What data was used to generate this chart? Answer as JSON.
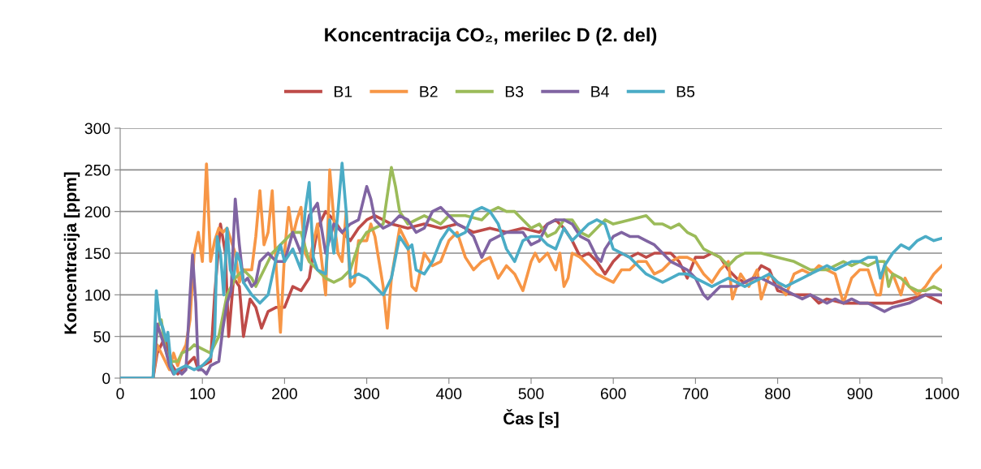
{
  "chart_data": {
    "type": "line",
    "title": "Koncentracija CO₂, merilec D (2. del)",
    "xlabel": "Čas [s]",
    "ylabel": "Koncentracija [ppm]",
    "xlim": [
      0,
      1000
    ],
    "ylim": [
      0,
      300
    ],
    "xticks": [
      0,
      100,
      200,
      300,
      400,
      500,
      600,
      700,
      800,
      900,
      1000
    ],
    "yticks": [
      0,
      50,
      100,
      150,
      200,
      250,
      300
    ],
    "grid": "y",
    "legend": "top",
    "marker": "none",
    "line_style": "solid",
    "series": [
      {
        "name": "B1",
        "color": "#be4b48",
        "x": [
          0,
          40,
          45,
          55,
          60,
          70,
          80,
          90,
          95,
          100,
          110,
          115,
          122,
          128,
          132,
          138,
          145,
          150,
          158,
          165,
          172,
          180,
          190,
          200,
          210,
          220,
          230,
          240,
          250,
          260,
          270,
          280,
          290,
          300,
          310,
          320,
          330,
          350,
          370,
          390,
          410,
          430,
          450,
          470,
          490,
          510,
          520,
          530,
          540,
          550,
          560,
          570,
          580,
          590,
          600,
          610,
          620,
          630,
          640,
          650,
          660,
          670,
          680,
          690,
          700,
          710,
          720,
          730,
          740,
          750,
          760,
          770,
          780,
          790,
          800,
          820,
          840,
          850,
          860,
          880,
          900,
          920,
          940,
          960,
          980,
          1000
        ],
        "values": [
          0,
          0,
          30,
          50,
          20,
          5,
          15,
          25,
          10,
          15,
          20,
          100,
          185,
          150,
          50,
          120,
          110,
          50,
          95,
          85,
          60,
          80,
          85,
          85,
          110,
          105,
          120,
          180,
          200,
          190,
          175,
          165,
          180,
          190,
          195,
          190,
          185,
          180,
          185,
          180,
          185,
          175,
          180,
          175,
          180,
          175,
          185,
          190,
          180,
          165,
          145,
          150,
          140,
          125,
          140,
          150,
          145,
          150,
          145,
          150,
          150,
          150,
          140,
          120,
          145,
          145,
          150,
          145,
          130,
          120,
          115,
          120,
          135,
          130,
          105,
          100,
          100,
          90,
          95,
          90,
          90,
          90,
          90,
          95,
          100,
          90
        ]
      },
      {
        "name": "B2",
        "color": "#f79646",
        "x": [
          0,
          40,
          45,
          55,
          60,
          65,
          70,
          75,
          80,
          85,
          90,
          95,
          100,
          105,
          110,
          115,
          120,
          125,
          130,
          140,
          145,
          150,
          160,
          165,
          170,
          175,
          180,
          185,
          190,
          195,
          200,
          205,
          210,
          215,
          220,
          225,
          230,
          240,
          250,
          255,
          260,
          265,
          270,
          275,
          280,
          285,
          290,
          300,
          305,
          310,
          320,
          325,
          330,
          335,
          340,
          350,
          355,
          360,
          370,
          380,
          390,
          400,
          410,
          420,
          430,
          440,
          450,
          460,
          470,
          480,
          490,
          500,
          505,
          510,
          520,
          530,
          535,
          540,
          545,
          550,
          560,
          570,
          580,
          590,
          600,
          610,
          620,
          630,
          640,
          650,
          660,
          670,
          680,
          690,
          700,
          710,
          720,
          730,
          740,
          745,
          755,
          765,
          775,
          780,
          790,
          800,
          810,
          820,
          830,
          840,
          850,
          860,
          870,
          880,
          890,
          900,
          910,
          920,
          925,
          930,
          940,
          950,
          955,
          960,
          970,
          980,
          990,
          1000
        ],
        "values": [
          0,
          0,
          40,
          20,
          10,
          30,
          15,
          30,
          40,
          70,
          150,
          175,
          140,
          257,
          140,
          165,
          180,
          175,
          180,
          150,
          115,
          130,
          130,
          170,
          225,
          160,
          175,
          225,
          130,
          55,
          150,
          205,
          170,
          190,
          205,
          150,
          140,
          185,
          100,
          250,
          190,
          150,
          140,
          200,
          110,
          115,
          165,
          165,
          185,
          170,
          110,
          60,
          120,
          150,
          180,
          160,
          110,
          105,
          150,
          135,
          140,
          165,
          175,
          145,
          130,
          140,
          145,
          120,
          135,
          125,
          105,
          140,
          150,
          140,
          150,
          130,
          150,
          110,
          120,
          150,
          145,
          135,
          125,
          120,
          115,
          130,
          130,
          140,
          140,
          125,
          130,
          140,
          145,
          145,
          140,
          125,
          115,
          130,
          140,
          95,
          125,
          110,
          130,
          95,
          125,
          115,
          100,
          125,
          130,
          125,
          135,
          130,
          125,
          90,
          120,
          130,
          130,
          100,
          100,
          135,
          125,
          100,
          120,
          110,
          100,
          110,
          125,
          135
        ]
      },
      {
        "name": "B3",
        "color": "#9bbb59",
        "x": [
          0,
          40,
          45,
          50,
          55,
          60,
          70,
          75,
          85,
          90,
          100,
          110,
          120,
          130,
          140,
          150,
          160,
          165,
          175,
          185,
          190,
          200,
          210,
          220,
          230,
          240,
          250,
          260,
          270,
          280,
          290,
          300,
          310,
          320,
          330,
          335,
          340,
          350,
          360,
          370,
          380,
          390,
          400,
          420,
          440,
          450,
          460,
          470,
          480,
          490,
          500,
          510,
          520,
          530,
          540,
          550,
          560,
          570,
          580,
          590,
          600,
          620,
          640,
          650,
          660,
          670,
          680,
          690,
          700,
          710,
          720,
          730,
          740,
          750,
          760,
          780,
          800,
          820,
          840,
          850,
          860,
          870,
          880,
          890,
          900,
          910,
          920,
          930,
          935,
          940,
          950,
          960,
          970,
          980,
          990,
          1000
        ],
        "values": [
          0,
          0,
          60,
          70,
          35,
          20,
          20,
          30,
          35,
          40,
          35,
          30,
          50,
          100,
          120,
          130,
          120,
          110,
          130,
          150,
          155,
          165,
          175,
          175,
          140,
          130,
          120,
          115,
          120,
          130,
          160,
          175,
          180,
          185,
          253,
          230,
          200,
          185,
          190,
          195,
          190,
          185,
          195,
          195,
          190,
          200,
          205,
          200,
          200,
          190,
          180,
          185,
          170,
          175,
          190,
          190,
          175,
          170,
          180,
          190,
          185,
          190,
          195,
          185,
          185,
          180,
          185,
          175,
          170,
          155,
          150,
          145,
          135,
          145,
          150,
          150,
          145,
          140,
          130,
          130,
          130,
          135,
          140,
          135,
          140,
          135,
          140,
          140,
          110,
          125,
          120,
          110,
          105,
          105,
          110,
          105
        ]
      },
      {
        "name": "B4",
        "color": "#8064a2",
        "x": [
          0,
          40,
          45,
          50,
          55,
          60,
          65,
          70,
          75,
          80,
          85,
          88,
          92,
          95,
          100,
          105,
          110,
          120,
          125,
          130,
          135,
          140,
          145,
          150,
          155,
          160,
          165,
          170,
          180,
          190,
          200,
          210,
          220,
          230,
          240,
          250,
          260,
          270,
          280,
          290,
          300,
          305,
          310,
          320,
          330,
          340,
          350,
          360,
          370,
          380,
          390,
          400,
          410,
          420,
          430,
          440,
          450,
          460,
          470,
          480,
          490,
          500,
          510,
          520,
          530,
          540,
          550,
          560,
          570,
          580,
          585,
          590,
          600,
          610,
          620,
          630,
          640,
          650,
          660,
          670,
          680,
          690,
          700,
          710,
          715,
          720,
          730,
          740,
          750,
          760,
          770,
          780,
          790,
          800,
          810,
          820,
          830,
          840,
          850,
          860,
          870,
          880,
          890,
          900,
          910,
          920,
          930,
          940,
          960,
          980,
          1000
        ],
        "values": [
          0,
          0,
          65,
          50,
          35,
          15,
          5,
          10,
          5,
          10,
          100,
          148,
          90,
          10,
          10,
          5,
          15,
          20,
          60,
          90,
          105,
          215,
          160,
          115,
          120,
          110,
          115,
          140,
          150,
          140,
          140,
          175,
          150,
          195,
          210,
          150,
          185,
          175,
          185,
          190,
          230,
          215,
          190,
          180,
          185,
          195,
          190,
          175,
          180,
          200,
          205,
          195,
          185,
          180,
          170,
          145,
          165,
          170,
          175,
          175,
          175,
          160,
          165,
          185,
          190,
          190,
          185,
          170,
          165,
          145,
          140,
          155,
          170,
          175,
          170,
          170,
          165,
          160,
          150,
          140,
          135,
          130,
          120,
          100,
          95,
          100,
          110,
          110,
          110,
          115,
          120,
          120,
          115,
          110,
          105,
          100,
          95,
          100,
          95,
          90,
          95,
          90,
          95,
          90,
          90,
          85,
          80,
          85,
          90,
          100,
          100
        ]
      },
      {
        "name": "B5",
        "color": "#4bacc6",
        "x": [
          0,
          40,
          44,
          48,
          52,
          56,
          58,
          62,
          66,
          70,
          80,
          90,
          100,
          110,
          115,
          118,
          122,
          126,
          130,
          134,
          138,
          142,
          146,
          150,
          160,
          170,
          180,
          190,
          195,
          200,
          210,
          220,
          225,
          230,
          235,
          240,
          250,
          255,
          260,
          265,
          270,
          275,
          280,
          290,
          300,
          310,
          320,
          330,
          340,
          350,
          355,
          360,
          370,
          380,
          390,
          400,
          410,
          420,
          430,
          440,
          450,
          460,
          470,
          480,
          490,
          500,
          510,
          520,
          530,
          540,
          550,
          560,
          570,
          580,
          590,
          600,
          610,
          620,
          630,
          640,
          650,
          660,
          670,
          680,
          690,
          700,
          710,
          720,
          730,
          740,
          750,
          760,
          770,
          780,
          790,
          800,
          810,
          820,
          830,
          840,
          850,
          860,
          870,
          880,
          890,
          900,
          910,
          920,
          925,
          930,
          940,
          950,
          960,
          970,
          980,
          990,
          1000
        ],
        "values": [
          0,
          0,
          105,
          70,
          60,
          45,
          55,
          15,
          5,
          10,
          15,
          10,
          15,
          25,
          50,
          170,
          150,
          100,
          180,
          130,
          120,
          150,
          140,
          115,
          100,
          90,
          100,
          145,
          160,
          140,
          155,
          130,
          200,
          235,
          145,
          130,
          125,
          190,
          150,
          200,
          258,
          200,
          120,
          125,
          120,
          110,
          100,
          120,
          170,
          155,
          160,
          130,
          125,
          140,
          165,
          180,
          170,
          175,
          200,
          205,
          200,
          185,
          155,
          140,
          165,
          170,
          170,
          160,
          155,
          180,
          165,
          175,
          185,
          190,
          185,
          155,
          150,
          145,
          135,
          125,
          120,
          115,
          120,
          125,
          125,
          120,
          115,
          110,
          115,
          120,
          115,
          110,
          115,
          120,
          125,
          115,
          110,
          115,
          120,
          125,
          130,
          135,
          130,
          135,
          140,
          140,
          145,
          145,
          120,
          135,
          150,
          160,
          155,
          165,
          170,
          165,
          168
        ]
      }
    ]
  }
}
